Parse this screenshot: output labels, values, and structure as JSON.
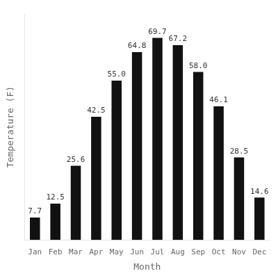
{
  "chart_data": {
    "type": "bar",
    "categories": [
      "Jan",
      "Feb",
      "Mar",
      "Apr",
      "May",
      "Jun",
      "Jul",
      "Aug",
      "Sep",
      "Oct",
      "Nov",
      "Dec"
    ],
    "values": [
      7.7,
      12.5,
      25.6,
      42.5,
      55.0,
      64.8,
      69.7,
      67.2,
      58.0,
      46.1,
      28.5,
      14.6
    ],
    "value_labels": [
      "7.7",
      "12.5",
      "25.6",
      "42.5",
      "55.0",
      "64.8",
      "69.7",
      "67.2",
      "58.0",
      "46.1",
      "28.5",
      "14.6"
    ],
    "color": "#111111",
    "xlabel": "Month",
    "ylabel": "Temperature (F)",
    "ylim": [
      0,
      78
    ],
    "yticks": [],
    "tick_labels": "x",
    "data_labels": true,
    "grid": false
  }
}
